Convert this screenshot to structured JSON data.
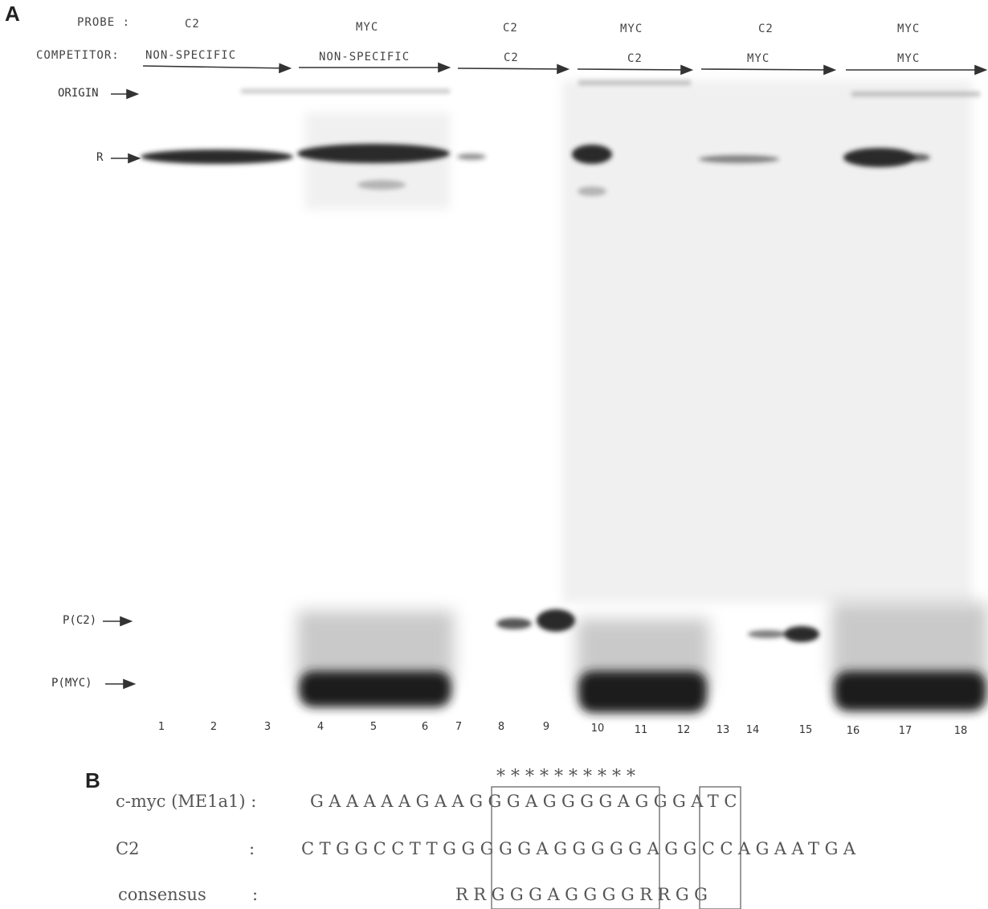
{
  "panel_a": {
    "letter": "A",
    "probe_label": "PROBE :",
    "competitor_label": "COMPETITOR:",
    "groups": [
      {
        "probe": "C2",
        "competitor": "NON-SPECIFIC"
      },
      {
        "probe": "MYC",
        "competitor": "NON-SPECIFIC"
      },
      {
        "probe": "C2",
        "competitor": "C2"
      },
      {
        "probe": "MYC",
        "competitor": "C2"
      },
      {
        "probe": "C2",
        "competitor": "MYC"
      },
      {
        "probe": "MYC",
        "competitor": "MYC"
      }
    ],
    "markers": {
      "origin": "ORIGIN",
      "r": "R",
      "pc2": "P(C2)",
      "pmyc": "P(MYC)"
    },
    "lanes": [
      "1",
      "2",
      "3",
      "4",
      "5",
      "6",
      "7",
      "8",
      "9",
      "10",
      "11",
      "12",
      "13",
      "14",
      "15",
      "16",
      "17",
      "18"
    ]
  },
  "panel_b": {
    "letter": "B",
    "rows": [
      {
        "label": "c-myc (ME1a1) :",
        "sequence": "GAAAAAGAAGGGAGGGGAGGGATC"
      },
      {
        "label": "C2",
        "sequence": "CTGGCCTTGGGGGAGGGGGAGGCCAGAATGA"
      },
      {
        "label": "consensus",
        "sequence": "RRGGGAGGGGRRGG"
      }
    ],
    "colon": ":",
    "stars": "* * *     * * * *     * * *"
  }
}
